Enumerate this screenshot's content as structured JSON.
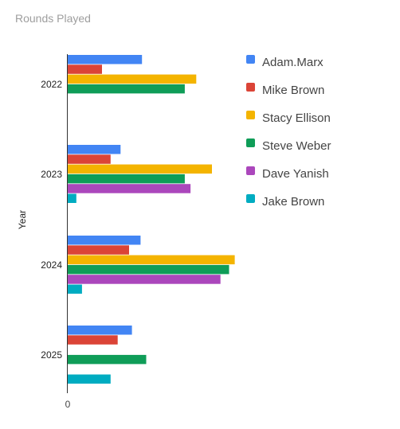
{
  "chart_data": {
    "type": "bar",
    "orientation": "horizontal",
    "title": "Rounds Played",
    "ylabel": "Year",
    "xlabel": "",
    "categories": [
      "2022",
      "2023",
      "2024",
      "2025"
    ],
    "x_tick_labels": [
      "0"
    ],
    "xlim": [
      0,
      12
    ],
    "grid": false,
    "legend_position": "right",
    "series": [
      {
        "name": "Adam.Marx",
        "color": "#4285f4",
        "values": [
          5.2,
          3.7,
          5.1,
          4.5
        ]
      },
      {
        "name": "Mike Brown",
        "color": "#db4437",
        "values": [
          2.4,
          3.0,
          4.3,
          3.5
        ]
      },
      {
        "name": "Stacy Ellison",
        "color": "#f4b400",
        "values": [
          9.0,
          10.1,
          11.7,
          0
        ]
      },
      {
        "name": "Steve Weber",
        "color": "#0f9d58",
        "values": [
          8.2,
          8.2,
          11.3,
          5.5
        ]
      },
      {
        "name": "Dave Yanish",
        "color": "#ab47bc",
        "values": [
          0,
          8.6,
          10.7,
          0
        ]
      },
      {
        "name": "Jake Brown",
        "color": "#00acc1",
        "values": [
          0,
          0.6,
          1.0,
          3.0
        ]
      }
    ]
  }
}
